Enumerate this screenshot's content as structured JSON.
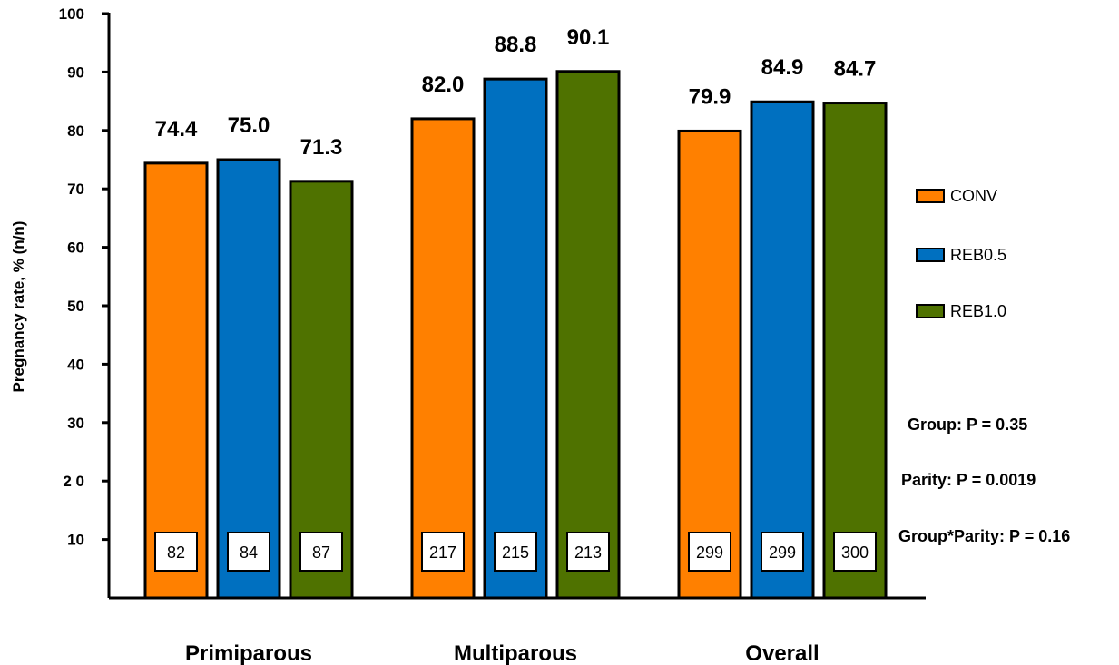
{
  "chart_data": {
    "type": "bar",
    "ylabel": "Pregnancy rate, % (n/n)",
    "ylim": [
      0,
      100
    ],
    "yticks": [
      "10",
      "2 0",
      "30",
      "40",
      "50",
      "60",
      "70",
      "80",
      "90",
      "100"
    ],
    "ytick_values": [
      10,
      20,
      30,
      40,
      50,
      60,
      70,
      80,
      90,
      100
    ],
    "categories": [
      "Primiparous",
      "Multiparous",
      "Overall"
    ],
    "series": [
      {
        "name": "CONV",
        "color": "#ff8000",
        "values": [
          74.4,
          82.0,
          79.9
        ],
        "labels": [
          "74.4",
          "82.0",
          "79.9"
        ],
        "n": [
          "82",
          "217",
          "299"
        ]
      },
      {
        "name": "REB0.5",
        "color": "#0070c0",
        "values": [
          75.0,
          88.8,
          84.9
        ],
        "labels": [
          "75.0",
          "88.8",
          "84.9"
        ],
        "n": [
          "84",
          "215",
          "299"
        ]
      },
      {
        "name": "REB1.0",
        "color": "#4f7200",
        "values": [
          71.3,
          90.1,
          84.7
        ],
        "labels": [
          "71.3",
          "90.1",
          "84.7"
        ],
        "n": [
          "87",
          "213",
          "300"
        ]
      }
    ],
    "legend_position": "right",
    "grid": false,
    "annotations": [
      "Group: P = 0.35",
      "Parity: P = 0.0019",
      "Group*Parity: P = 0.16"
    ]
  }
}
